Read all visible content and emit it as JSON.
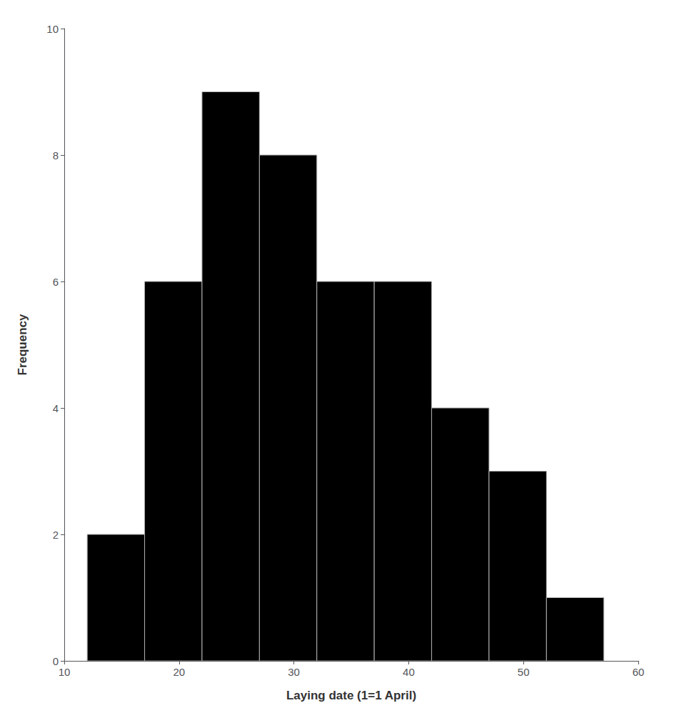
{
  "chart_data": {
    "type": "histogram",
    "xlabel": "Laying date (1=1 April)",
    "ylabel": "Frequency",
    "bins": [
      12,
      17,
      22,
      27,
      32,
      37,
      42,
      47,
      52,
      57
    ],
    "values": [
      2,
      6,
      9,
      8,
      6,
      6,
      4,
      3,
      1
    ],
    "color": "#000000",
    "xlim": [
      10,
      60
    ],
    "ylim": [
      0,
      10
    ],
    "xticks": [
      10,
      20,
      30,
      40,
      50,
      60
    ],
    "yticks": [
      0,
      2,
      4,
      6,
      8,
      10
    ],
    "grid": false
  }
}
